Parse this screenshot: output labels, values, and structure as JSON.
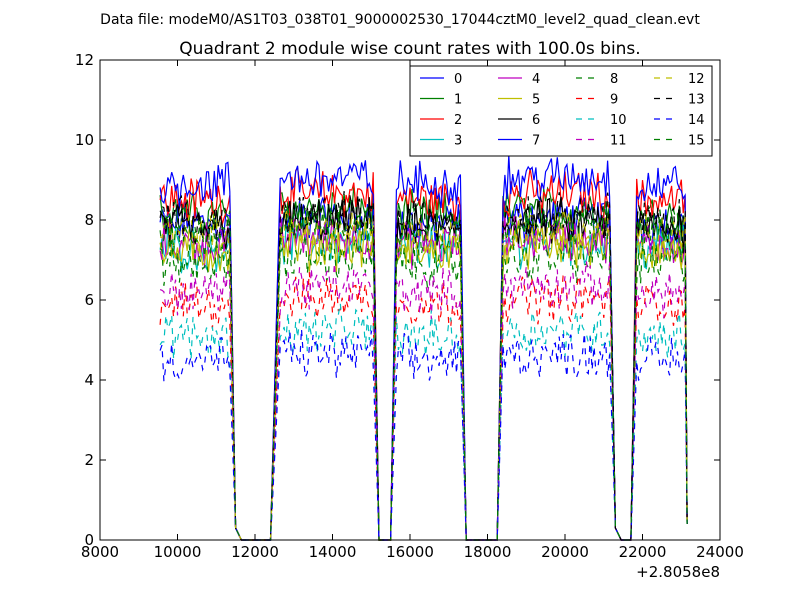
{
  "chart_data": {
    "type": "line",
    "suptitle": "Data file: modeM0/AS1T03_038T01_9000002530_17044cztM0_level2_quad_clean.evt",
    "title": "Quadrant 2 module wise count rates with 100.0s bins.",
    "xlabel": "",
    "ylabel": "",
    "x_offset_label": "+2.8058e8",
    "xlim": [
      8000,
      24000
    ],
    "ylim": [
      0,
      12
    ],
    "x_ticks": [
      "8000",
      "10000",
      "12000",
      "14000",
      "16000",
      "18000",
      "20000",
      "22000",
      "24000"
    ],
    "y_ticks": [
      "0",
      "2",
      "4",
      "6",
      "8",
      "10",
      "12"
    ],
    "x_tick_values": [
      8000,
      10000,
      12000,
      14000,
      16000,
      18000,
      20000,
      22000,
      24000
    ],
    "y_tick_values": [
      0,
      2,
      4,
      6,
      8,
      10,
      12
    ],
    "segments": [
      [
        9550,
        11350
      ],
      [
        12650,
        15050
      ],
      [
        15650,
        17300
      ],
      [
        18400,
        21150
      ],
      [
        21850,
        23100
      ]
    ],
    "gap_points": [
      [
        11500,
        0.3
      ],
      [
        11650,
        0
      ],
      [
        12400,
        0
      ],
      [
        15200,
        0
      ],
      [
        15500,
        0
      ],
      [
        17450,
        0
      ],
      [
        18250,
        0
      ],
      [
        21300,
        0.3
      ],
      [
        21450,
        0
      ],
      [
        21700,
        0
      ]
    ],
    "end_point": [
      23150,
      0.4
    ],
    "legend": {
      "placement": "upper right",
      "ncol": 4
    },
    "series": [
      {
        "name": "0",
        "color": "#0000ff",
        "dash": "solid",
        "level": 7.9
      },
      {
        "name": "1",
        "color": "#008000",
        "dash": "solid",
        "level": 8.1
      },
      {
        "name": "2",
        "color": "#ff0000",
        "dash": "solid",
        "level": 8.5
      },
      {
        "name": "3",
        "color": "#00bfbf",
        "dash": "solid",
        "level": 7.3
      },
      {
        "name": "4",
        "color": "#bf00bf",
        "dash": "solid",
        "level": 7.4
      },
      {
        "name": "5",
        "color": "#bfbf00",
        "dash": "solid",
        "level": 7.2
      },
      {
        "name": "6",
        "color": "#000000",
        "dash": "solid",
        "level": 7.8
      },
      {
        "name": "7",
        "color": "#0000ff",
        "dash": "solid",
        "level": 8.9
      },
      {
        "name": "8",
        "color": "#008000",
        "dash": "dashed",
        "level": 6.9
      },
      {
        "name": "9",
        "color": "#ff0000",
        "dash": "dashed",
        "level": 5.9
      },
      {
        "name": "10",
        "color": "#00bfbf",
        "dash": "dashed",
        "level": 5.1
      },
      {
        "name": "11",
        "color": "#bf00bf",
        "dash": "dashed",
        "level": 6.2
      },
      {
        "name": "12",
        "color": "#bfbf00",
        "dash": "dashed",
        "level": 7.6
      },
      {
        "name": "13",
        "color": "#000000",
        "dash": "dashed",
        "level": 8.0
      },
      {
        "name": "14",
        "color": "#0000ff",
        "dash": "dashed",
        "level": 4.5
      },
      {
        "name": "15",
        "color": "#008000",
        "dash": "dashed",
        "level": 7.7
      }
    ]
  }
}
